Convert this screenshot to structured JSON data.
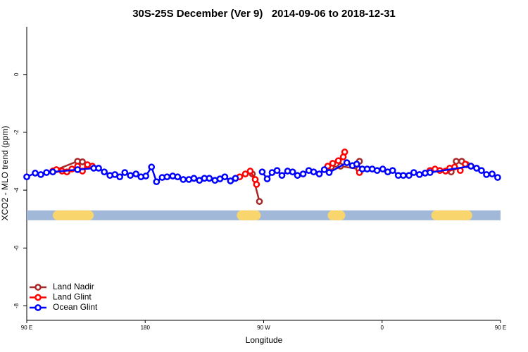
{
  "chart_data": {
    "type": "line",
    "title": "30S-25S December (Ver 9)   2014-09-06 to 2018-12-31",
    "x_label": "Longitude",
    "y_label": "XCO2 - MLO trend (ppm)",
    "xlim": [
      90,
      450
    ],
    "xticks": [
      {
        "value": 90,
        "label": "90 E"
      },
      {
        "value": 180,
        "label": "180"
      },
      {
        "value": 270,
        "label": "90 W"
      },
      {
        "value": 360,
        "label": "0"
      },
      {
        "value": 450,
        "label": "90 E"
      }
    ],
    "ylim": [
      -8.5,
      1.65
    ],
    "yticks": [
      0,
      -2,
      -4,
      -6,
      -8
    ],
    "legend": "bottom-left",
    "band_y": -4.87,
    "band_color": "#a2b8d8",
    "land_color": "#f9d56e",
    "land_spans": [
      [
        109.8,
        140.9
      ],
      [
        249.6,
        267.8
      ],
      [
        318.7,
        332
      ],
      [
        397.4,
        428.5
      ]
    ],
    "series": [
      {
        "name": "Land Nadir",
        "color": "#a52a2a",
        "x": [
          109.8,
          128.6,
          132.3,
          136.1,
          null,
          261.4,
          266.8,
          null,
          321.4,
          328.4,
          342.3,
          342.8,
          null,
          412.5,
          416.3,
          420.5,
          424.3
        ],
        "values": [
          -3.34,
          -3.0,
          -3.02,
          -3.17,
          null,
          -3.44,
          -4.39,
          null,
          -3.2,
          -3.17,
          -3.27,
          -3.0,
          null,
          -3.37,
          -3.0,
          -3.0,
          -3.12
        ]
      },
      {
        "name": "Land Glint",
        "color": "#ff0000",
        "x": [
          109.8,
          112.5,
          116.8,
          120.5,
          124.3,
          128.6,
          132.3,
          136.1,
          139.8,
          null,
          251.8,
          256.1,
          259.8,
          263.6,
          264.6,
          null,
          318.7,
          322.5,
          326.8,
          330.5,
          331.6,
          null,
          342.8,
          null,
          396.4,
          400.2,
          403.9,
          408.2,
          411.4,
          415.1,
          419.4,
          423.2,
          427.5
        ],
        "values": [
          -3.34,
          -3.29,
          -3.34,
          -3.37,
          -3.27,
          -3.17,
          -3.34,
          -3.12,
          -3.17,
          null,
          -3.54,
          -3.44,
          -3.34,
          -3.63,
          -3.8,
          null,
          -3.17,
          -3.07,
          -2.98,
          -2.85,
          -2.68,
          null,
          -3.39,
          null,
          -3.32,
          -3.27,
          -3.32,
          -3.34,
          -3.24,
          -3.2,
          -3.32,
          -3.1,
          -3.17
        ]
      },
      {
        "name": "Ocean Glint",
        "color": "#0000ff",
        "x": [
          90,
          96.4,
          100.7,
          105,
          109.8,
          128.6,
          140.9,
          144.6,
          148.9,
          153.2,
          157,
          160.7,
          164.5,
          168.7,
          173,
          176.8,
          180.5,
          184.8,
          188.6,
          192.9,
          196.6,
          200.9,
          204.6,
          208.9,
          213.2,
          217,
          221.2,
          225,
          228.7,
          233,
          236.8,
          240.5,
          244.8,
          248.6,
          null,
          268.9,
          272.7,
          276.4,
          280.2,
          283.9,
          288.2,
          292,
          295.7,
          300,
          304.3,
          308,
          312.3,
          316.1,
          319.8,
          333.2,
          337.5,
          340.7,
          345,
          348.7,
          352.5,
          356.2,
          360.5,
          364.3,
          368,
          372.3,
          376.1,
          380.4,
          384.1,
          388.4,
          392.7,
          396.4,
          427.5,
          431.8,
          435.5,
          439.3,
          443.6,
          447.8
        ],
        "values": [
          -3.54,
          -3.41,
          -3.46,
          -3.39,
          -3.37,
          -3.29,
          -3.24,
          -3.24,
          -3.37,
          -3.49,
          -3.46,
          -3.54,
          -3.39,
          -3.49,
          -3.44,
          -3.54,
          -3.51,
          -3.2,
          -3.71,
          -3.56,
          -3.54,
          -3.51,
          -3.54,
          -3.63,
          -3.63,
          -3.59,
          -3.66,
          -3.59,
          -3.59,
          -3.66,
          -3.61,
          -3.54,
          -3.68,
          -3.59,
          null,
          -3.37,
          -3.61,
          -3.39,
          -3.32,
          -3.49,
          -3.34,
          -3.37,
          -3.49,
          -3.44,
          -3.32,
          -3.37,
          -3.44,
          -3.29,
          -3.39,
          -3.05,
          -3.15,
          -3.1,
          -3.27,
          -3.27,
          -3.27,
          -3.32,
          -3.27,
          -3.37,
          -3.32,
          -3.49,
          -3.49,
          -3.49,
          -3.39,
          -3.46,
          -3.41,
          -3.39,
          -3.17,
          -3.24,
          -3.32,
          -3.46,
          -3.44,
          -3.56
        ]
      }
    ]
  }
}
